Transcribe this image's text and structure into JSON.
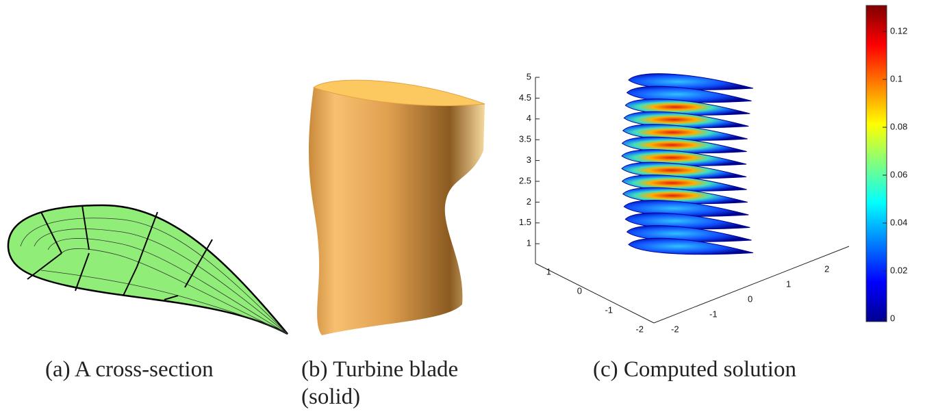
{
  "figure": {
    "panels": [
      {
        "caption": [
          "(a) A cross-section"
        ]
      },
      {
        "caption": [
          "(b) Turbine blade",
          "(solid)"
        ]
      },
      {
        "caption": [
          "(c) Computed solution"
        ],
        "z_ticks": [
          5,
          4.5,
          4,
          3.5,
          3,
          2.5,
          2,
          1.5,
          1
        ],
        "left_ticks": [
          1,
          0,
          -1,
          -2
        ],
        "right_ticks": [
          -2,
          -1,
          0,
          1,
          2
        ]
      }
    ],
    "colorbar": {
      "ticks": [
        0.12,
        0.1,
        0.08,
        0.06,
        0.04,
        0.02,
        0
      ]
    }
  }
}
